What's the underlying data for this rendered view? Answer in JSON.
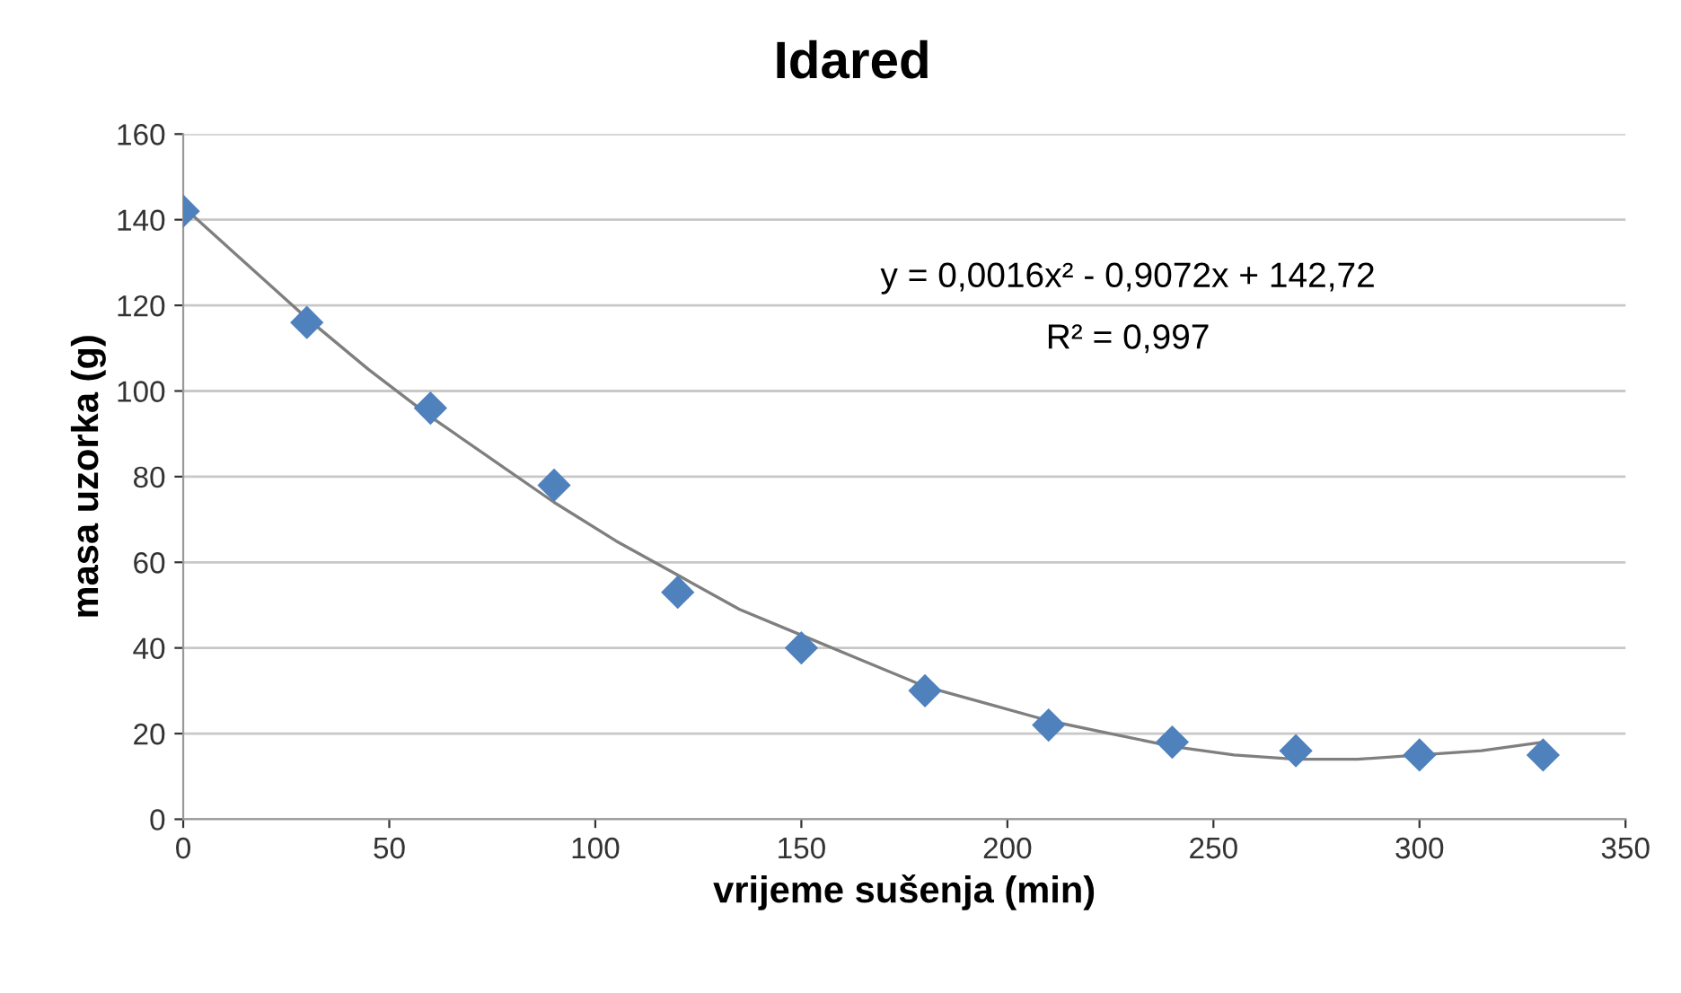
{
  "chart_data": {
    "type": "scatter",
    "title": "Idared",
    "xlabel": "vrijeme sušenja (min)",
    "ylabel": "masa uzorka (g)",
    "x": [
      0,
      30,
      60,
      90,
      120,
      150,
      180,
      210,
      240,
      270,
      300,
      330
    ],
    "series": [
      {
        "color": "#4f81bd",
        "marker": "diamond",
        "values": [
          142,
          116,
          96,
          78,
          53,
          40,
          30,
          22,
          18,
          16,
          15,
          15
        ]
      },
      {
        "type": "line",
        "color": "#7f7f7f",
        "line_style": "solid",
        "x": [
          0,
          15,
          30,
          45,
          60,
          75,
          90,
          105,
          120,
          135,
          150,
          165,
          180,
          195,
          210,
          225,
          240,
          255,
          270,
          285,
          300,
          315,
          330
        ],
        "values": [
          143,
          130,
          117,
          105,
          94,
          84,
          74,
          65,
          57,
          49,
          43,
          37,
          31,
          27,
          23,
          20,
          17,
          15,
          14,
          14,
          15,
          16,
          18
        ]
      }
    ],
    "annotations": [
      "y = 0,0016x² - 0,9072x + 142,72",
      "R² = 0,997"
    ],
    "xlim": [
      0,
      350
    ],
    "xticks": [
      0,
      50,
      100,
      150,
      200,
      250,
      300,
      350
    ],
    "ylim": [
      0,
      160
    ],
    "yticks": [
      0,
      20,
      40,
      60,
      80,
      100,
      120,
      140,
      160
    ],
    "grid": "y",
    "legend": false
  }
}
